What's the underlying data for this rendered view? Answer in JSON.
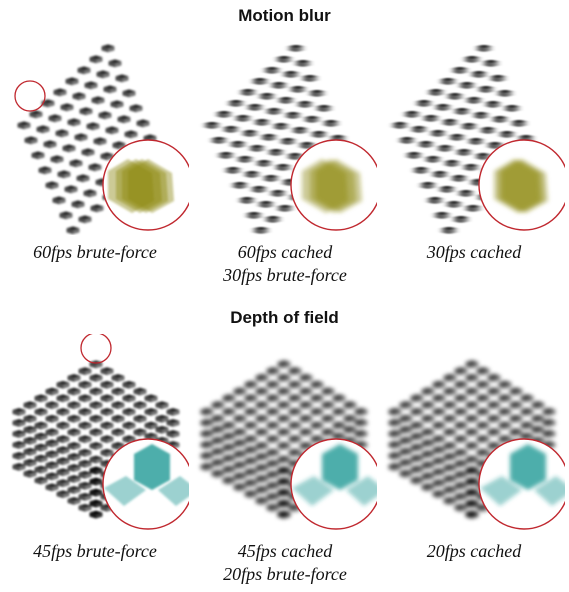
{
  "sections": [
    {
      "title": "Motion blur",
      "panels": [
        {
          "caption_lines": [
            "60fps brute-force"
          ],
          "effect": "motion-blur",
          "zoom_indicator": true
        },
        {
          "caption_lines": [
            "60fps cached",
            "30fps brute-force"
          ],
          "effect": "motion-blur",
          "zoom_indicator": false
        },
        {
          "caption_lines": [
            "30fps cached"
          ],
          "effect": "motion-blur",
          "zoom_indicator": false
        }
      ]
    },
    {
      "title": "Depth of field",
      "panels": [
        {
          "caption_lines": [
            "45fps brute-force"
          ],
          "effect": "depth-of-field",
          "zoom_indicator": true
        },
        {
          "caption_lines": [
            "45fps cached",
            "20fps brute-force"
          ],
          "effect": "depth-of-field",
          "zoom_indicator": false
        },
        {
          "caption_lines": [
            "20fps cached"
          ],
          "effect": "depth-of-field",
          "zoom_indicator": false
        }
      ]
    }
  ],
  "colors": {
    "inset_ring": "#c0282f",
    "mb_inset_fill": "#8e8a14",
    "dof_inset_fill": "#1f9a96"
  }
}
